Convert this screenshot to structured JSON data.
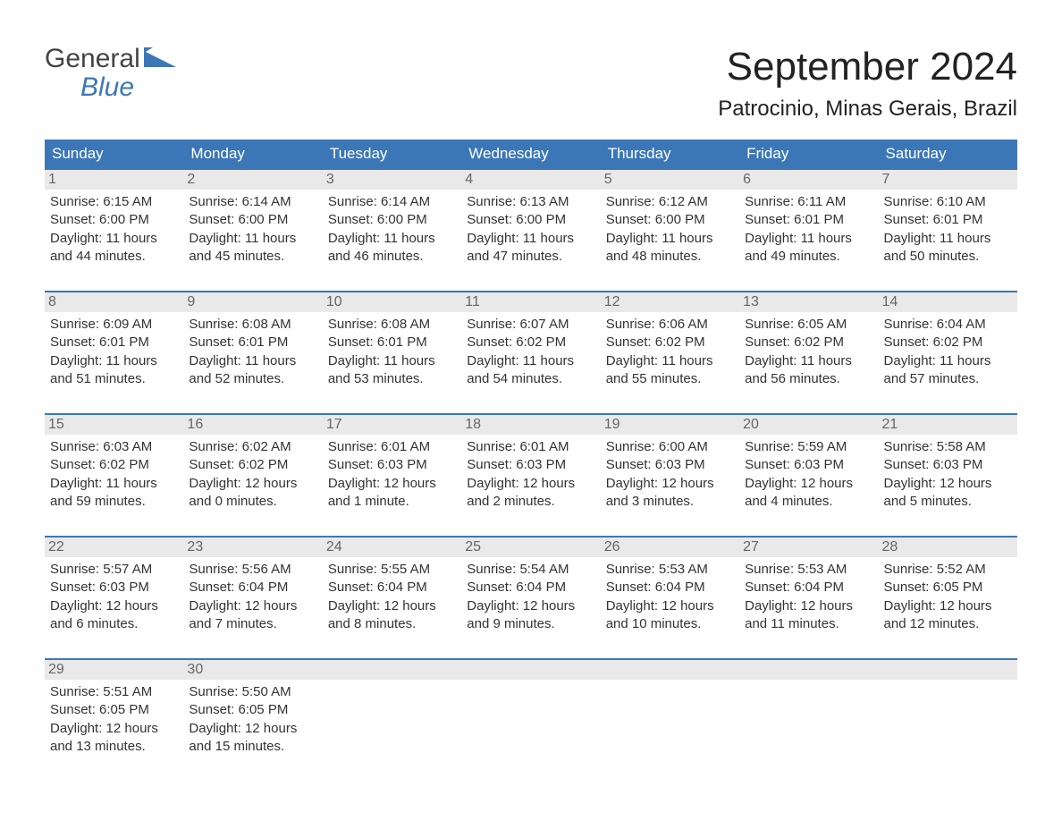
{
  "brand": {
    "word1": "General",
    "word2": "Blue",
    "text_color": "#444444",
    "accent_color": "#3b77b7",
    "flag_color": "#3b77b7"
  },
  "title": "September 2024",
  "location": "Patrocinio, Minas Gerais, Brazil",
  "calendar": {
    "header_bg": "#3b77b7",
    "header_fg": "#ffffff",
    "daynum_bg": "#e9e9e9",
    "daynum_border": "#3b77b7",
    "text_color": "#333333",
    "days_of_week": [
      "Sunday",
      "Monday",
      "Tuesday",
      "Wednesday",
      "Thursday",
      "Friday",
      "Saturday"
    ],
    "weeks": [
      [
        {
          "num": "1",
          "sunrise": "Sunrise: 6:15 AM",
          "sunset": "Sunset: 6:00 PM",
          "daylight": "Daylight: 11 hours and 44 minutes."
        },
        {
          "num": "2",
          "sunrise": "Sunrise: 6:14 AM",
          "sunset": "Sunset: 6:00 PM",
          "daylight": "Daylight: 11 hours and 45 minutes."
        },
        {
          "num": "3",
          "sunrise": "Sunrise: 6:14 AM",
          "sunset": "Sunset: 6:00 PM",
          "daylight": "Daylight: 11 hours and 46 minutes."
        },
        {
          "num": "4",
          "sunrise": "Sunrise: 6:13 AM",
          "sunset": "Sunset: 6:00 PM",
          "daylight": "Daylight: 11 hours and 47 minutes."
        },
        {
          "num": "5",
          "sunrise": "Sunrise: 6:12 AM",
          "sunset": "Sunset: 6:00 PM",
          "daylight": "Daylight: 11 hours and 48 minutes."
        },
        {
          "num": "6",
          "sunrise": "Sunrise: 6:11 AM",
          "sunset": "Sunset: 6:01 PM",
          "daylight": "Daylight: 11 hours and 49 minutes."
        },
        {
          "num": "7",
          "sunrise": "Sunrise: 6:10 AM",
          "sunset": "Sunset: 6:01 PM",
          "daylight": "Daylight: 11 hours and 50 minutes."
        }
      ],
      [
        {
          "num": "8",
          "sunrise": "Sunrise: 6:09 AM",
          "sunset": "Sunset: 6:01 PM",
          "daylight": "Daylight: 11 hours and 51 minutes."
        },
        {
          "num": "9",
          "sunrise": "Sunrise: 6:08 AM",
          "sunset": "Sunset: 6:01 PM",
          "daylight": "Daylight: 11 hours and 52 minutes."
        },
        {
          "num": "10",
          "sunrise": "Sunrise: 6:08 AM",
          "sunset": "Sunset: 6:01 PM",
          "daylight": "Daylight: 11 hours and 53 minutes."
        },
        {
          "num": "11",
          "sunrise": "Sunrise: 6:07 AM",
          "sunset": "Sunset: 6:02 PM",
          "daylight": "Daylight: 11 hours and 54 minutes."
        },
        {
          "num": "12",
          "sunrise": "Sunrise: 6:06 AM",
          "sunset": "Sunset: 6:02 PM",
          "daylight": "Daylight: 11 hours and 55 minutes."
        },
        {
          "num": "13",
          "sunrise": "Sunrise: 6:05 AM",
          "sunset": "Sunset: 6:02 PM",
          "daylight": "Daylight: 11 hours and 56 minutes."
        },
        {
          "num": "14",
          "sunrise": "Sunrise: 6:04 AM",
          "sunset": "Sunset: 6:02 PM",
          "daylight": "Daylight: 11 hours and 57 minutes."
        }
      ],
      [
        {
          "num": "15",
          "sunrise": "Sunrise: 6:03 AM",
          "sunset": "Sunset: 6:02 PM",
          "daylight": "Daylight: 11 hours and 59 minutes."
        },
        {
          "num": "16",
          "sunrise": "Sunrise: 6:02 AM",
          "sunset": "Sunset: 6:02 PM",
          "daylight": "Daylight: 12 hours and 0 minutes."
        },
        {
          "num": "17",
          "sunrise": "Sunrise: 6:01 AM",
          "sunset": "Sunset: 6:03 PM",
          "daylight": "Daylight: 12 hours and 1 minute."
        },
        {
          "num": "18",
          "sunrise": "Sunrise: 6:01 AM",
          "sunset": "Sunset: 6:03 PM",
          "daylight": "Daylight: 12 hours and 2 minutes."
        },
        {
          "num": "19",
          "sunrise": "Sunrise: 6:00 AM",
          "sunset": "Sunset: 6:03 PM",
          "daylight": "Daylight: 12 hours and 3 minutes."
        },
        {
          "num": "20",
          "sunrise": "Sunrise: 5:59 AM",
          "sunset": "Sunset: 6:03 PM",
          "daylight": "Daylight: 12 hours and 4 minutes."
        },
        {
          "num": "21",
          "sunrise": "Sunrise: 5:58 AM",
          "sunset": "Sunset: 6:03 PM",
          "daylight": "Daylight: 12 hours and 5 minutes."
        }
      ],
      [
        {
          "num": "22",
          "sunrise": "Sunrise: 5:57 AM",
          "sunset": "Sunset: 6:03 PM",
          "daylight": "Daylight: 12 hours and 6 minutes."
        },
        {
          "num": "23",
          "sunrise": "Sunrise: 5:56 AM",
          "sunset": "Sunset: 6:04 PM",
          "daylight": "Daylight: 12 hours and 7 minutes."
        },
        {
          "num": "24",
          "sunrise": "Sunrise: 5:55 AM",
          "sunset": "Sunset: 6:04 PM",
          "daylight": "Daylight: 12 hours and 8 minutes."
        },
        {
          "num": "25",
          "sunrise": "Sunrise: 5:54 AM",
          "sunset": "Sunset: 6:04 PM",
          "daylight": "Daylight: 12 hours and 9 minutes."
        },
        {
          "num": "26",
          "sunrise": "Sunrise: 5:53 AM",
          "sunset": "Sunset: 6:04 PM",
          "daylight": "Daylight: 12 hours and 10 minutes."
        },
        {
          "num": "27",
          "sunrise": "Sunrise: 5:53 AM",
          "sunset": "Sunset: 6:04 PM",
          "daylight": "Daylight: 12 hours and 11 minutes."
        },
        {
          "num": "28",
          "sunrise": "Sunrise: 5:52 AM",
          "sunset": "Sunset: 6:05 PM",
          "daylight": "Daylight: 12 hours and 12 minutes."
        }
      ],
      [
        {
          "num": "29",
          "sunrise": "Sunrise: 5:51 AM",
          "sunset": "Sunset: 6:05 PM",
          "daylight": "Daylight: 12 hours and 13 minutes."
        },
        {
          "num": "30",
          "sunrise": "Sunrise: 5:50 AM",
          "sunset": "Sunset: 6:05 PM",
          "daylight": "Daylight: 12 hours and 15 minutes."
        },
        {
          "empty": true
        },
        {
          "empty": true
        },
        {
          "empty": true
        },
        {
          "empty": true
        },
        {
          "empty": true
        }
      ]
    ]
  }
}
